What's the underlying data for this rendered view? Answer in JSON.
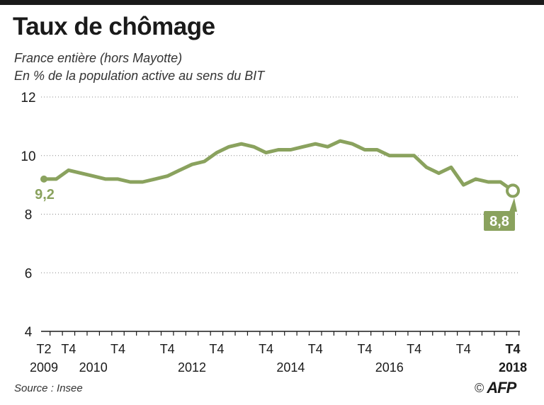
{
  "title": "Taux de chômage",
  "subtitle_1": "France entière (hors Mayotte)",
  "subtitle_2": "En % de la population active au sens du BIT",
  "source": "Source : Insee",
  "credit": {
    "copyright": "©",
    "logo": "AFP"
  },
  "colors": {
    "line": "#8aa25e",
    "grid": "#888888",
    "axis": "#1a1a1a",
    "text": "#1a1a1a"
  },
  "chart_data": {
    "type": "line",
    "title": "Taux de chômage",
    "subtitle": "France entière (hors Mayotte) — En % de la population active au sens du BIT",
    "xlabel": "",
    "ylabel": "",
    "ylim": [
      4,
      12
    ],
    "yticks": [
      4,
      6,
      8,
      10,
      12
    ],
    "grid": "horizontal dotted",
    "x_tick_labels": [
      {
        "top": "T2",
        "bottom": "2009",
        "index": 0,
        "bold": false
      },
      {
        "top": "T4",
        "bottom": "",
        "index": 2,
        "bold": false
      },
      {
        "top": "",
        "bottom": "2010",
        "index": 4,
        "bold": false
      },
      {
        "top": "T4",
        "bottom": "",
        "index": 6,
        "bold": false
      },
      {
        "top": "T4",
        "bottom": "",
        "index": 10,
        "bold": false
      },
      {
        "top": "",
        "bottom": "2012",
        "index": 12,
        "bold": false
      },
      {
        "top": "T4",
        "bottom": "",
        "index": 14,
        "bold": false
      },
      {
        "top": "T4",
        "bottom": "",
        "index": 18,
        "bold": false
      },
      {
        "top": "",
        "bottom": "2014",
        "index": 20,
        "bold": false
      },
      {
        "top": "T4",
        "bottom": "",
        "index": 22,
        "bold": false
      },
      {
        "top": "T4",
        "bottom": "",
        "index": 26,
        "bold": false
      },
      {
        "top": "",
        "bottom": "2016",
        "index": 28,
        "bold": false
      },
      {
        "top": "T4",
        "bottom": "",
        "index": 30,
        "bold": false
      },
      {
        "top": "T4",
        "bottom": "",
        "index": 34,
        "bold": false
      },
      {
        "top": "T4",
        "bottom": "2018",
        "index": 38,
        "bold": true
      }
    ],
    "x": [
      "2009 T2",
      "2009 T3",
      "2009 T4",
      "2010 T1",
      "2010 T2",
      "2010 T3",
      "2010 T4",
      "2011 T1",
      "2011 T2",
      "2011 T3",
      "2011 T4",
      "2012 T1",
      "2012 T2",
      "2012 T3",
      "2012 T4",
      "2013 T1",
      "2013 T2",
      "2013 T3",
      "2013 T4",
      "2014 T1",
      "2014 T2",
      "2014 T3",
      "2014 T4",
      "2015 T1",
      "2015 T2",
      "2015 T3",
      "2015 T4",
      "2016 T1",
      "2016 T2",
      "2016 T3",
      "2016 T4",
      "2017 T1",
      "2017 T2",
      "2017 T3",
      "2017 T4",
      "2018 T1",
      "2018 T2",
      "2018 T3",
      "2018 T4"
    ],
    "series": [
      {
        "values": [
          9.2,
          9.2,
          9.5,
          9.4,
          9.3,
          9.2,
          9.2,
          9.1,
          9.1,
          9.2,
          9.3,
          9.5,
          9.7,
          9.8,
          10.1,
          10.3,
          10.4,
          10.3,
          10.1,
          10.2,
          10.2,
          10.3,
          10.4,
          10.3,
          10.5,
          10.4,
          10.2,
          10.2,
          10.0,
          10.0,
          10.0,
          9.6,
          9.4,
          9.6,
          9.0,
          9.2,
          9.1,
          9.1,
          8.8
        ]
      }
    ],
    "annotations": [
      {
        "text": "9,2",
        "index": 0,
        "style": "start"
      },
      {
        "text": "8,8",
        "index": 38,
        "style": "end-badge"
      }
    ]
  }
}
